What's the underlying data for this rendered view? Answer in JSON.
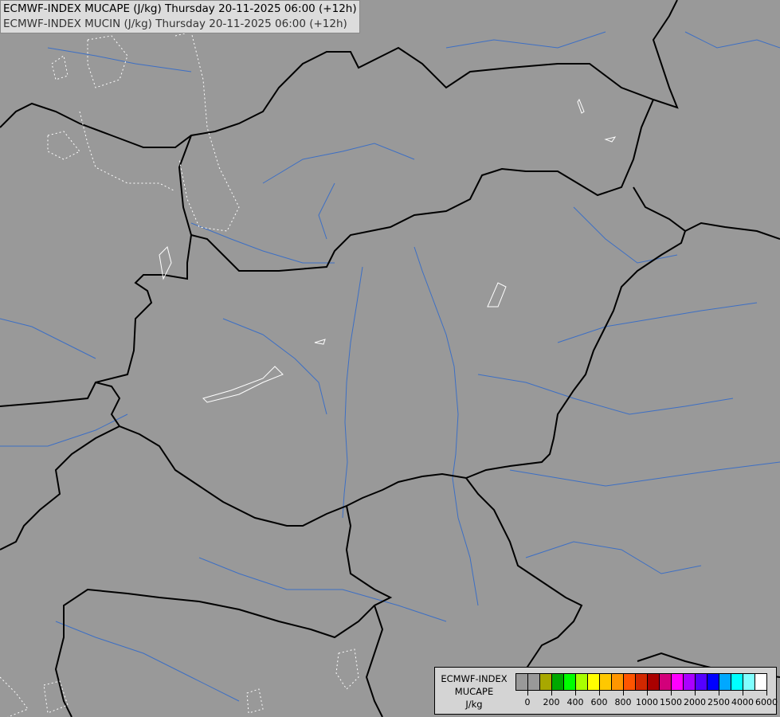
{
  "title": {
    "line1": "ECMWF-INDEX MUCAPE (J/kg) Thursday 20-11-2025 06:00 (+12h)",
    "line2": "ECMWF-INDEX MUCIN (J/kg) Thursday 20-11-2025 06:00 (+12h)"
  },
  "colors": {
    "background": "#999999",
    "border": "#000000",
    "river": "#3d6fc4",
    "contour": "#ffffff"
  },
  "legend": {
    "line1": "ECMWF-INDEX",
    "line2": "MUCAPE",
    "line3": "J/kg",
    "swatches": [
      "#999999",
      "#999999",
      "#a8a800",
      "#00a800",
      "#00ff00",
      "#a8ff00",
      "#ffff00",
      "#ffc800",
      "#ff9600",
      "#ff5500",
      "#d22800",
      "#aa0000",
      "#d2007a",
      "#ff00ff",
      "#aa00ff",
      "#5500ff",
      "#0000ff",
      "#00a8ff",
      "#00ffff",
      "#80ffff",
      "#ffffff"
    ],
    "tick_labels": [
      "0",
      "200",
      "400",
      "600",
      "800",
      "1000",
      "1500",
      "2000",
      "2500",
      "4000",
      "6000"
    ]
  }
}
